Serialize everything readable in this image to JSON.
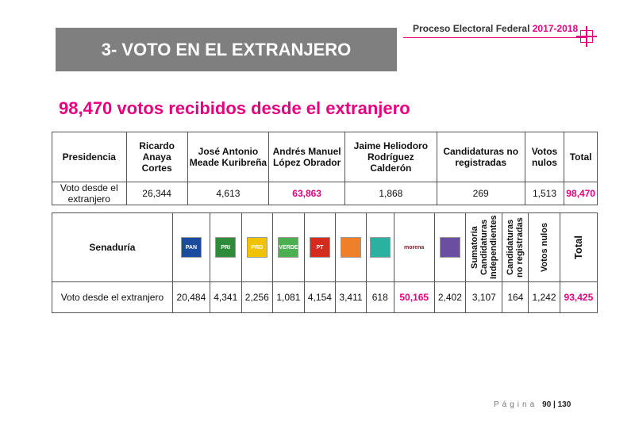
{
  "header": {
    "title": "Proceso Electoral Federal",
    "years": "2017-2018"
  },
  "section_title": "3- VOTO EN EL EXTRANJERO",
  "headline": "98,470 votos recibidos desde el extranjero",
  "accent_color": "#e6007e",
  "presidency": {
    "header": [
      "Presidencia",
      "Ricardo Anaya Cortes",
      "José Antonio Meade Kuribreña",
      "Andrés Manuel López Obrador",
      "Jaime Heliodoro Rodríguez Calderón",
      "Candidaturas no registradas",
      "Votos nulos",
      "Total"
    ],
    "row": [
      "Voto desde el extranjero",
      "26,344",
      "4,613",
      "63,863",
      "1,868",
      "269",
      "1,513",
      "98,470"
    ],
    "highlight_columns": [
      3,
      7
    ]
  },
  "senate": {
    "first_header": "Senaduría",
    "logos": [
      {
        "label": "PAN",
        "color": "#1a4b9c"
      },
      {
        "label": "PRI",
        "color": "#2e8b3a"
      },
      {
        "label": "PRD",
        "color": "#f2c200"
      },
      {
        "label": "VERDE",
        "color": "#4caf50"
      },
      {
        "label": "PT",
        "color": "#d52b1e"
      },
      {
        "color": "#f07f2a"
      },
      {
        "color": "#2bb1a0"
      },
      {
        "label": "morena",
        "color": "#8b1a2b"
      },
      {
        "color": "#6a4fa0"
      }
    ],
    "rotated_headers": [
      "Sumatoria Candidaturas Independientes",
      "Candidaturas no registradas",
      "Votos nulos",
      "Total"
    ],
    "row": [
      "Voto desde el extranjero",
      "20,484",
      "4,341",
      "2,256",
      "1,081",
      "4,154",
      "3,411",
      "618",
      "50,165",
      "2,402",
      "3,107",
      "164",
      "1,242",
      "93,425"
    ],
    "highlight_columns": [
      8,
      13
    ]
  },
  "footer": {
    "page_word": "Página",
    "page_number": "90 | 130"
  }
}
